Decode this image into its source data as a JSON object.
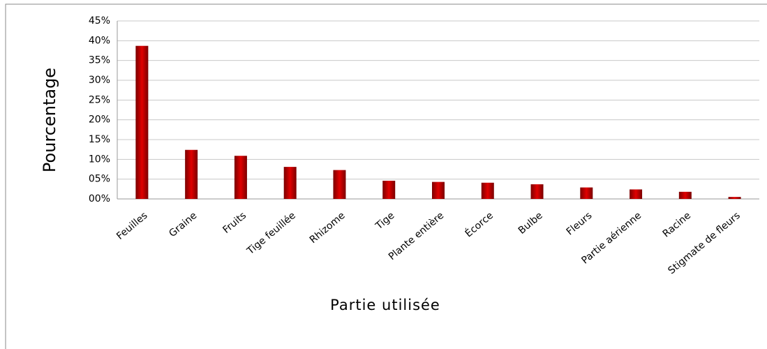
{
  "chart_data": {
    "type": "bar",
    "x_label": "Partie utilisée",
    "y_label": "Pourcentage",
    "categories": [
      "Feuilles",
      "Graine",
      "Fruits",
      "Tige feuillée",
      "Rhizome",
      "Tige",
      "Plante entière",
      "Écorce",
      "Bulbe",
      "Fleurs",
      "Partie aérienne",
      "Racine",
      "Stigmate de fleurs"
    ],
    "values": [
      38.7,
      12.4,
      10.9,
      8.1,
      7.3,
      4.6,
      4.3,
      4.1,
      3.7,
      2.9,
      2.4,
      1.8,
      0.5
    ],
    "color": "#e00000",
    "ylim": [
      0,
      45
    ],
    "yticks": [
      {
        "value": 0,
        "label": "00%"
      },
      {
        "value": 5,
        "label": "05%"
      },
      {
        "value": 10,
        "label": "10%"
      },
      {
        "value": 15,
        "label": "15%"
      },
      {
        "value": 20,
        "label": "20%"
      },
      {
        "value": 25,
        "label": "25%"
      },
      {
        "value": 30,
        "label": "30%"
      },
      {
        "value": 35,
        "label": "35%"
      },
      {
        "value": 40,
        "label": "40%"
      },
      {
        "value": 45,
        "label": "45%"
      }
    ],
    "grid": true
  }
}
